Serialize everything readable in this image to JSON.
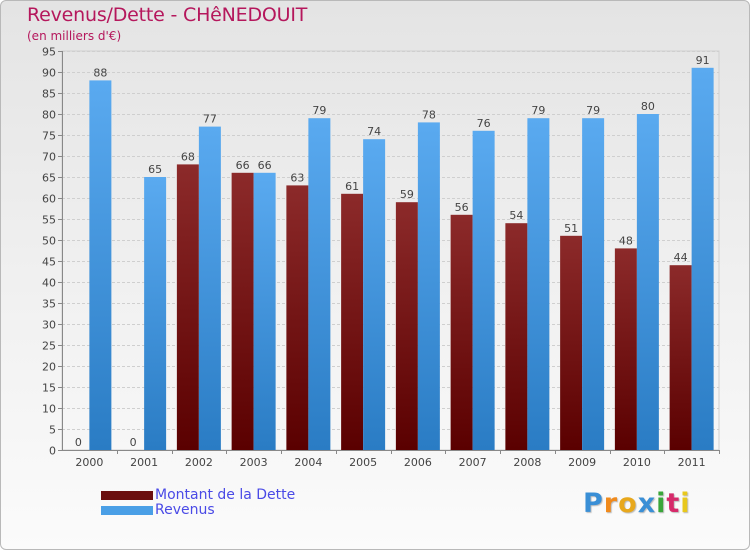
{
  "title": "Revenus/Dette - CHêNEDOUIT",
  "subtitle": "(en milliers d'€)",
  "colors": {
    "title": "#b5175c",
    "dette": "#7a1717",
    "revenus": "#4a9fe6",
    "legend_text": "#4a4ae6"
  },
  "legend": [
    {
      "label": "Montant de la Dette",
      "color": "#6b0f0f"
    },
    {
      "label": "Revenus",
      "color": "#4a9fe6"
    }
  ],
  "logo": {
    "text": "Proxiti",
    "letter_colors": [
      "#3a8fd6",
      "#f08a1c",
      "#e8a81c",
      "#3a8fd6",
      "#3aa63a",
      "#d62a6a",
      "#e8c81c"
    ]
  },
  "chart_data": {
    "type": "bar",
    "title": "Revenus/Dette - CHêNEDOUIT",
    "ylabel": "(en milliers d'€)",
    "xlabel": "",
    "categories": [
      "2000",
      "2001",
      "2002",
      "2003",
      "2004",
      "2005",
      "2006",
      "2007",
      "2008",
      "2009",
      "2010",
      "2011"
    ],
    "series": [
      {
        "name": "Montant de la Dette",
        "values": [
          0,
          0,
          68,
          66,
          63,
          61,
          59,
          56,
          54,
          51,
          48,
          44
        ]
      },
      {
        "name": "Revenus",
        "values": [
          88,
          65,
          77,
          66,
          79,
          74,
          78,
          76,
          79,
          79,
          80,
          91
        ]
      }
    ],
    "ylim": [
      0,
      95
    ],
    "ytick_step": 5,
    "grid": true,
    "legend_position": "bottom-left"
  }
}
